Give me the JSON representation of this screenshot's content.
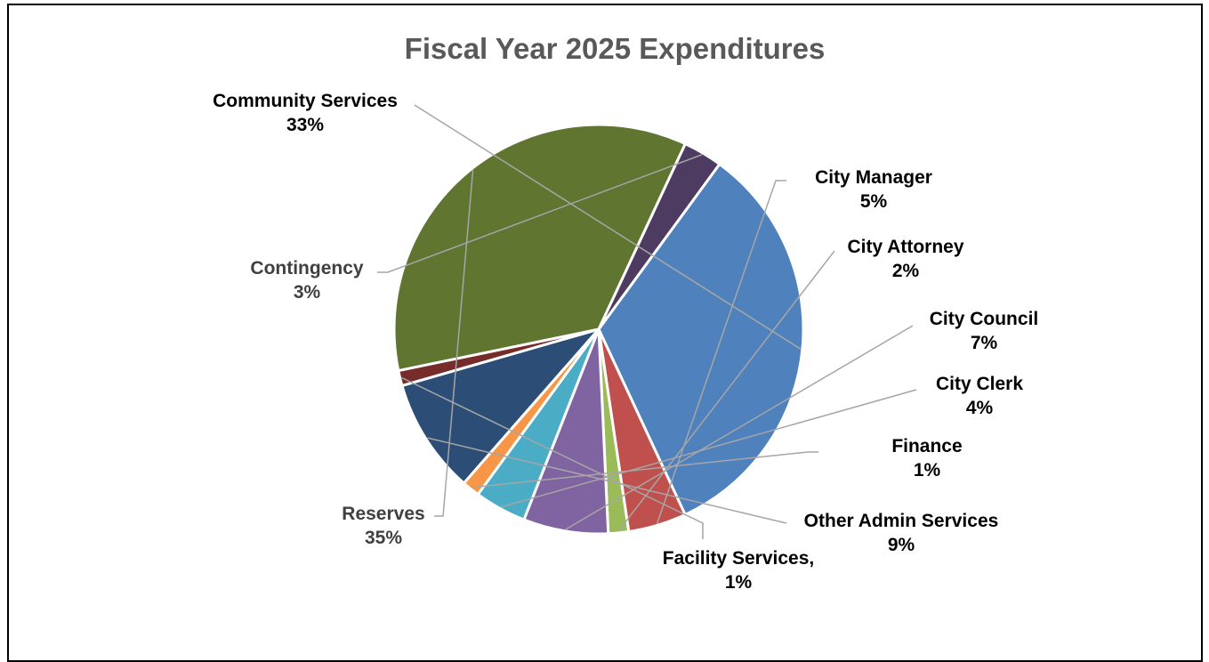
{
  "chart_data": {
    "type": "pie",
    "title": "Fiscal Year 2025 Expenditures",
    "slices": [
      {
        "label": "Community Services",
        "value": "33%",
        "percent": 33.0,
        "color": "#4F81BD",
        "text_color": "#000000"
      },
      {
        "label": "City Manager",
        "value": "5%",
        "percent": 4.6,
        "color": "#C0504D",
        "text_color": "#000000"
      },
      {
        "label": "City Attorney",
        "value": "2%",
        "percent": 1.6,
        "color": "#9BBB59",
        "text_color": "#000000"
      },
      {
        "label": "City Council",
        "value": "7%",
        "percent": 6.7,
        "color": "#8064A2",
        "text_color": "#000000"
      },
      {
        "label": "City Clerk",
        "value": "4%",
        "percent": 4.1,
        "color": "#4BACC6",
        "text_color": "#000000"
      },
      {
        "label": "Finance",
        "value": "1%",
        "percent": 1.4,
        "color": "#F79646",
        "text_color": "#000000"
      },
      {
        "label": "Other Admin Services",
        "value": "9%",
        "percent": 9.1,
        "color": "#2C4D75",
        "text_color": "#000000"
      },
      {
        "label": "Facility Services,",
        "value": "1%",
        "percent": 1.2,
        "color": "#772C2A",
        "text_color": "#000000"
      },
      {
        "label": "Reserves",
        "value": "35%",
        "percent": 35.2,
        "color": "#5F7530",
        "text_color": "#404040"
      },
      {
        "label": "Contingency",
        "value": "3%",
        "percent": 3.1,
        "color": "#4D3B62",
        "text_color": "#404040"
      }
    ]
  }
}
